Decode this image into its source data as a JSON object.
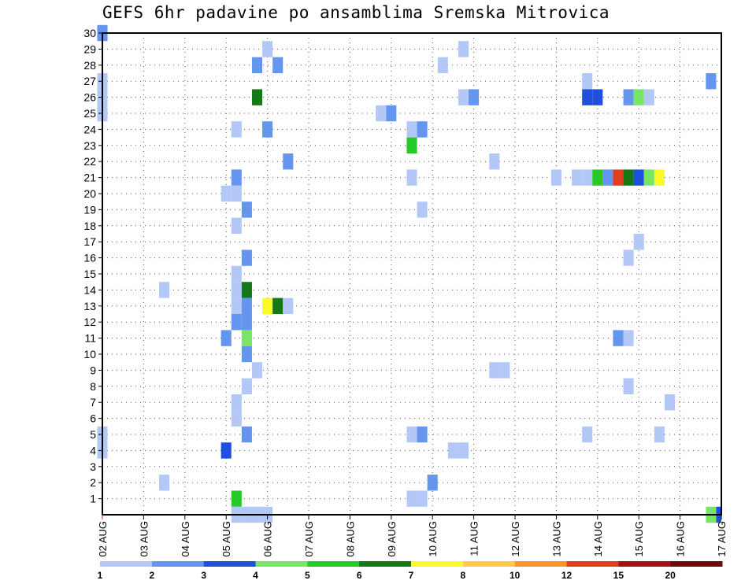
{
  "title": "GEFS 6hr padavine po ansamblima Sremska Mitrovica",
  "chart_data": {
    "type": "heatmap",
    "title": "GEFS 6hr padavine po ansamblima Sremska Mitrovica",
    "xlabel": "",
    "ylabel": "",
    "x_range": [
      0,
      60
    ],
    "y_range": [
      0,
      30
    ],
    "x_ticks": [
      {
        "x": 0,
        "label": "02 AUG"
      },
      {
        "x": 4,
        "label": "03 AUG"
      },
      {
        "x": 8,
        "label": "04 AUG"
      },
      {
        "x": 12,
        "label": "05 AUG"
      },
      {
        "x": 16,
        "label": "06 AUG"
      },
      {
        "x": 20,
        "label": "07 AUG"
      },
      {
        "x": 24,
        "label": "08 AUG"
      },
      {
        "x": 28,
        "label": "09 AUG"
      },
      {
        "x": 32,
        "label": "10 AUG"
      },
      {
        "x": 36,
        "label": "11 AUG"
      },
      {
        "x": 40,
        "label": "12 AUG"
      },
      {
        "x": 44,
        "label": "13 AUG"
      },
      {
        "x": 48,
        "label": "14 AUG"
      },
      {
        "x": 52,
        "label": "15 AUG"
      },
      {
        "x": 56,
        "label": "16 AUG"
      },
      {
        "x": 60,
        "label": "17 AUG"
      }
    ],
    "y_ticks": [
      1,
      2,
      3,
      4,
      5,
      6,
      7,
      8,
      9,
      10,
      11,
      12,
      13,
      14,
      15,
      16,
      17,
      18,
      19,
      20,
      21,
      22,
      23,
      24,
      25,
      26,
      27,
      28,
      29,
      30
    ],
    "grid": true,
    "colorbar": {
      "labels": [
        "1",
        "2",
        "3",
        "4",
        "5",
        "6",
        "7",
        "8",
        "10",
        "12",
        "15",
        "20"
      ],
      "colors": [
        "#b4c8f8",
        "#6496f0",
        "#1e50dc",
        "#78e664",
        "#28c828",
        "#147814",
        "#fafa28",
        "#ffc850",
        "#ff9628",
        "#e63c1e",
        "#a01414",
        "#6e0a0a"
      ]
    },
    "cells": [
      {
        "m": 30,
        "x": 0,
        "c": 2
      },
      {
        "m": 29,
        "x": 16,
        "c": 1
      },
      {
        "m": 29,
        "x": 35,
        "c": 1
      },
      {
        "m": 28,
        "x": 15,
        "c": 2
      },
      {
        "m": 28,
        "x": 17,
        "c": 2
      },
      {
        "m": 28,
        "x": 33,
        "c": 1
      },
      {
        "m": 27,
        "x": 0,
        "c": 1
      },
      {
        "m": 27,
        "x": 47,
        "c": 1
      },
      {
        "m": 27,
        "x": 59,
        "c": 2
      },
      {
        "m": 26,
        "x": 0,
        "c": 1
      },
      {
        "m": 26,
        "x": 15,
        "c": 6
      },
      {
        "m": 26,
        "x": 35,
        "c": 1
      },
      {
        "m": 26,
        "x": 36,
        "c": 2
      },
      {
        "m": 26,
        "x": 47,
        "c": 3
      },
      {
        "m": 26,
        "x": 48,
        "c": 3
      },
      {
        "m": 26,
        "x": 51,
        "c": 2
      },
      {
        "m": 26,
        "x": 52,
        "c": 4
      },
      {
        "m": 26,
        "x": 53,
        "c": 1
      },
      {
        "m": 25,
        "x": 0,
        "c": 1
      },
      {
        "m": 25,
        "x": 27,
        "c": 1
      },
      {
        "m": 25,
        "x": 28,
        "c": 2
      },
      {
        "m": 24,
        "x": 13,
        "c": 1
      },
      {
        "m": 24,
        "x": 16,
        "c": 2
      },
      {
        "m": 24,
        "x": 30,
        "c": 1
      },
      {
        "m": 24,
        "x": 31,
        "c": 2
      },
      {
        "m": 23,
        "x": 30,
        "c": 5
      },
      {
        "m": 22,
        "x": 18,
        "c": 2
      },
      {
        "m": 22,
        "x": 38,
        "c": 1
      },
      {
        "m": 21,
        "x": 13,
        "c": 2
      },
      {
        "m": 21,
        "x": 30,
        "c": 1
      },
      {
        "m": 21,
        "x": 44,
        "c": 1
      },
      {
        "m": 21,
        "x": 46,
        "c": 1
      },
      {
        "m": 21,
        "x": 47,
        "c": 1
      },
      {
        "m": 21,
        "x": 48,
        "c": 5
      },
      {
        "m": 21,
        "x": 49,
        "c": 2
      },
      {
        "m": 21,
        "x": 50,
        "c": 10
      },
      {
        "m": 21,
        "x": 51,
        "c": 6
      },
      {
        "m": 21,
        "x": 52,
        "c": 3
      },
      {
        "m": 21,
        "x": 53,
        "c": 4
      },
      {
        "m": 21,
        "x": 54,
        "c": 7
      },
      {
        "m": 20,
        "x": 12,
        "c": 1
      },
      {
        "m": 20,
        "x": 13,
        "c": 1
      },
      {
        "m": 19,
        "x": 14,
        "c": 2
      },
      {
        "m": 19,
        "x": 31,
        "c": 1
      },
      {
        "m": 18,
        "x": 13,
        "c": 1
      },
      {
        "m": 17,
        "x": 52,
        "c": 1
      },
      {
        "m": 16,
        "x": 14,
        "c": 2
      },
      {
        "m": 16,
        "x": 51,
        "c": 1
      },
      {
        "m": 15,
        "x": 13,
        "c": 1
      },
      {
        "m": 14,
        "x": 6,
        "c": 1
      },
      {
        "m": 14,
        "x": 13,
        "c": 1
      },
      {
        "m": 14,
        "x": 14,
        "c": 6
      },
      {
        "m": 13,
        "x": 13,
        "c": 1
      },
      {
        "m": 13,
        "x": 14,
        "c": 2
      },
      {
        "m": 13,
        "x": 16,
        "c": 7
      },
      {
        "m": 13,
        "x": 17,
        "c": 6
      },
      {
        "m": 13,
        "x": 18,
        "c": 1
      },
      {
        "m": 12,
        "x": 13,
        "c": 2
      },
      {
        "m": 12,
        "x": 14,
        "c": 2
      },
      {
        "m": 11,
        "x": 12,
        "c": 2
      },
      {
        "m": 11,
        "x": 14,
        "c": 4
      },
      {
        "m": 11,
        "x": 50,
        "c": 2
      },
      {
        "m": 11,
        "x": 51,
        "c": 1
      },
      {
        "m": 10,
        "x": 14,
        "c": 2
      },
      {
        "m": 9,
        "x": 15,
        "c": 1
      },
      {
        "m": 9,
        "x": 38,
        "c": 1
      },
      {
        "m": 9,
        "x": 39,
        "c": 1
      },
      {
        "m": 8,
        "x": 14,
        "c": 1
      },
      {
        "m": 8,
        "x": 51,
        "c": 1
      },
      {
        "m": 7,
        "x": 13,
        "c": 1
      },
      {
        "m": 7,
        "x": 55,
        "c": 1
      },
      {
        "m": 6,
        "x": 13,
        "c": 1
      },
      {
        "m": 5,
        "x": 0,
        "c": 1
      },
      {
        "m": 5,
        "x": 14,
        "c": 2
      },
      {
        "m": 5,
        "x": 30,
        "c": 1
      },
      {
        "m": 5,
        "x": 31,
        "c": 2
      },
      {
        "m": 5,
        "x": 47,
        "c": 1
      },
      {
        "m": 5,
        "x": 54,
        "c": 1
      },
      {
        "m": 4,
        "x": 0,
        "c": 1
      },
      {
        "m": 4,
        "x": 12,
        "c": 3
      },
      {
        "m": 4,
        "x": 34,
        "c": 1
      },
      {
        "m": 4,
        "x": 35,
        "c": 1
      },
      {
        "m": 2,
        "x": 6,
        "c": 1
      },
      {
        "m": 2,
        "x": 32,
        "c": 2
      },
      {
        "m": 1,
        "x": 13,
        "c": 5
      },
      {
        "m": 1,
        "x": 30,
        "c": 1
      },
      {
        "m": 1,
        "x": 31,
        "c": 1
      },
      {
        "m": 0,
        "x": 13,
        "c": 1
      },
      {
        "m": 0,
        "x": 14,
        "c": 1
      },
      {
        "m": 0,
        "x": 15,
        "c": 1
      },
      {
        "m": 0,
        "x": 16,
        "c": 1
      },
      {
        "m": 0,
        "x": 59,
        "c": 4
      },
      {
        "m": 0,
        "x": 60,
        "c": 3
      }
    ]
  }
}
